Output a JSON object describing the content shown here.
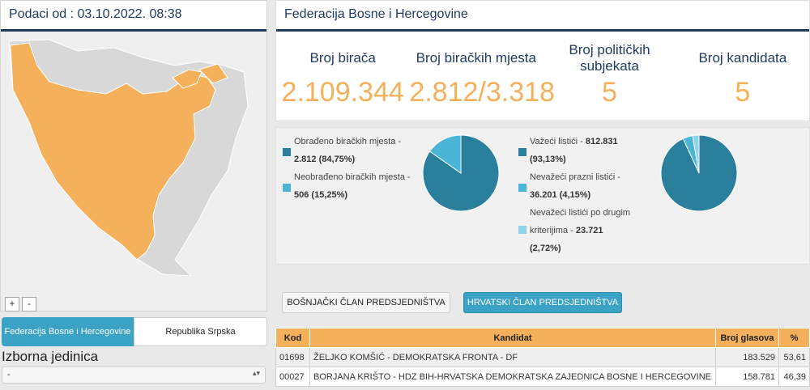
{
  "left": {
    "header": "Podaci od : 03.10.2022. 08:38",
    "zoom_in": "+",
    "zoom_out": "-",
    "tabs": [
      "Federacija Bosne i Hercegovine",
      "Republika Srpska"
    ],
    "section_title": "Izborna jedinica",
    "select_value": "-"
  },
  "right": {
    "header": "Federacija Bosne i Hercegovine",
    "stats": [
      {
        "label": "Broj birača",
        "value": "2.109.344"
      },
      {
        "label": "Broj biračkih mjesta",
        "value": "2.812/3.318"
      },
      {
        "label": "Broj političkih subjekata",
        "value": "5"
      },
      {
        "label": "Broj kandidata",
        "value": "5"
      }
    ],
    "legend1": [
      {
        "label": "Obrađeno biračkih mjesta -",
        "value": "2.812 (84,75%)"
      },
      {
        "label": "Neobrađeno biračkih mjesta -",
        "value": "506 (15,25%)"
      }
    ],
    "legend2": [
      {
        "label": "Važeći listići -",
        "value": "812.831",
        "pct": "(93,13%)"
      },
      {
        "label": "Nevažeći prazni listići -",
        "value": "36.201 (4,15%)"
      },
      {
        "label": "Nevažeći listići po drugim",
        "label2": "kriterijima -",
        "value": "23.721",
        "pct": "(2,72%)"
      }
    ],
    "pie1": [
      84.75,
      15.25
    ],
    "pie2": [
      93.13,
      4.15,
      2.72
    ],
    "colors": {
      "dark": "#2a7f9c",
      "mid": "#4ab5d6",
      "light": "#8fd3ea",
      "accent": "#f4b05a"
    },
    "buttons": [
      "BOŠNJAČKI ČLAN PREDSJEDNIŠTVA",
      "HRVATSKI ČLAN PREDSJEDNIŠTVA"
    ],
    "table": {
      "headers": [
        "Kod",
        "Kandidat",
        "Broj glasova",
        "%"
      ],
      "rows": [
        [
          "01698",
          "ŽELJKO KOMŠIĆ - DEMOKRATSKA FRONTA - DF",
          "183.529",
          "53,61"
        ],
        [
          "00027",
          "BORJANA KRIŠTO - HDZ BIH-HRVATSKA DEMOKRATSKA ZAJEDNICA BOSNE I HERCEGOVINE",
          "158.781",
          "46,39"
        ]
      ]
    }
  }
}
